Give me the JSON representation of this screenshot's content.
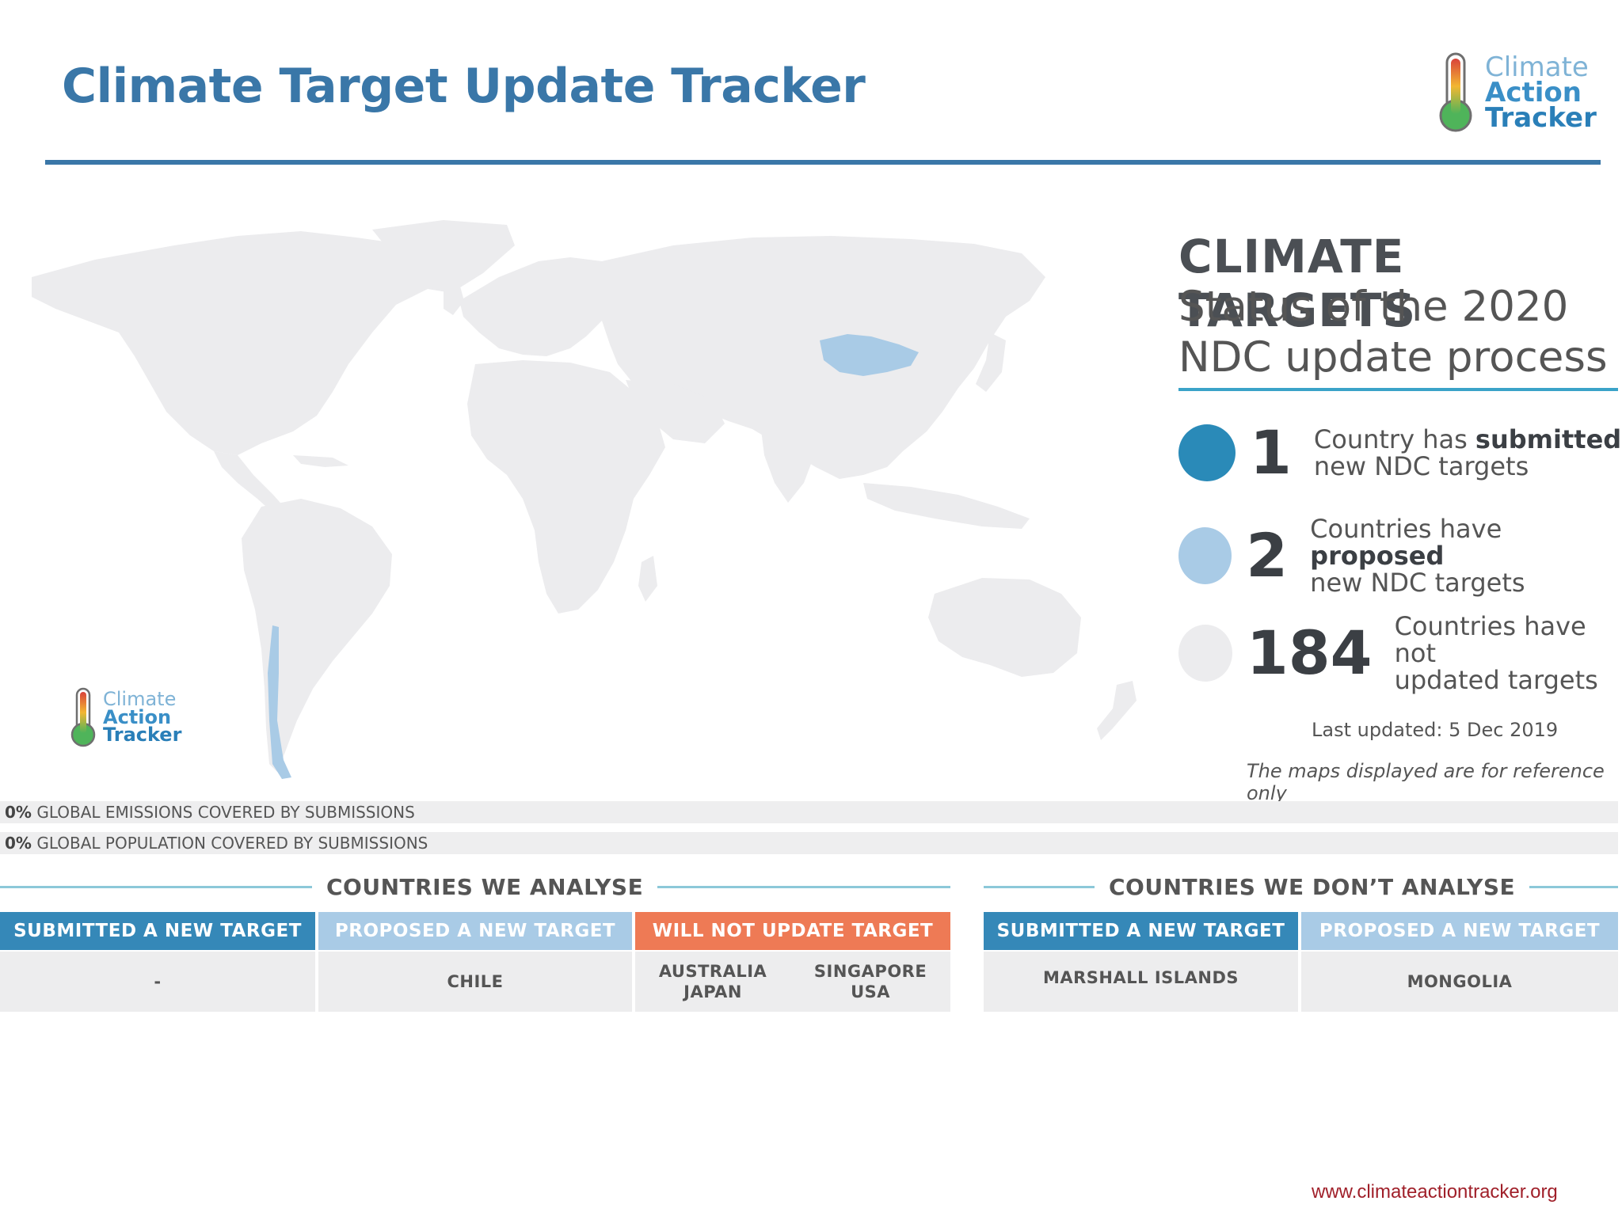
{
  "header": {
    "title": "Climate Target Update Tracker"
  },
  "logo": {
    "line1": "Climate",
    "line2": "Action",
    "line3": "Tracker"
  },
  "panel": {
    "heading": "CLIMATE TARGETS",
    "subheading": "Status of the 2020 NDC update process",
    "stats": [
      {
        "count": "1",
        "text_before": "Country has ",
        "text_bold": "submitted",
        "text_after": "new NDC targets",
        "color": "#2a8ab8"
      },
      {
        "count": "2",
        "text_before": "Countries have ",
        "text_bold": "proposed",
        "text_after": "new NDC targets",
        "color": "#a9cbe6"
      },
      {
        "count": "184",
        "text_before": "Countries have not",
        "text_bold": "",
        "text_after": "updated targets",
        "color": "#ececee"
      }
    ],
    "last_updated": "Last updated: 5 Dec 2019",
    "disclaimer": "The maps displayed are for reference only"
  },
  "coverage": {
    "emissions_pct": "0%",
    "emissions_text": "GLOBAL EMISSIONS COVERED BY SUBMISSIONS",
    "population_pct": "0%",
    "population_text": "GLOBAL POPULATION COVERED BY SUBMISSIONS"
  },
  "analysed": {
    "heading": "COUNTRIES WE ANALYSE",
    "submitted_label": "SUBMITTED A NEW TARGET",
    "submitted_value": "-",
    "proposed_label": "PROPOSED A NEW TARGET",
    "proposed_value": "CHILE",
    "will_not_label": "WILL NOT UPDATE TARGET",
    "will_not_col1_a": "AUSTRALIA",
    "will_not_col1_b": "JAPAN",
    "will_not_col2_a": "SINGAPORE",
    "will_not_col2_b": "USA"
  },
  "not_analysed": {
    "heading": "COUNTRIES WE DON’T ANALYSE",
    "submitted_label": "SUBMITTED A NEW TARGET",
    "submitted_value": "MARSHALL ISLANDS",
    "proposed_label": "PROPOSED A NEW TARGET",
    "proposed_value": "MONGOLIA"
  },
  "map": {
    "land_color": "#ececee",
    "highlight_color": "#a9cbe6"
  },
  "footer": {
    "url": "www.climateactiontracker.org"
  }
}
